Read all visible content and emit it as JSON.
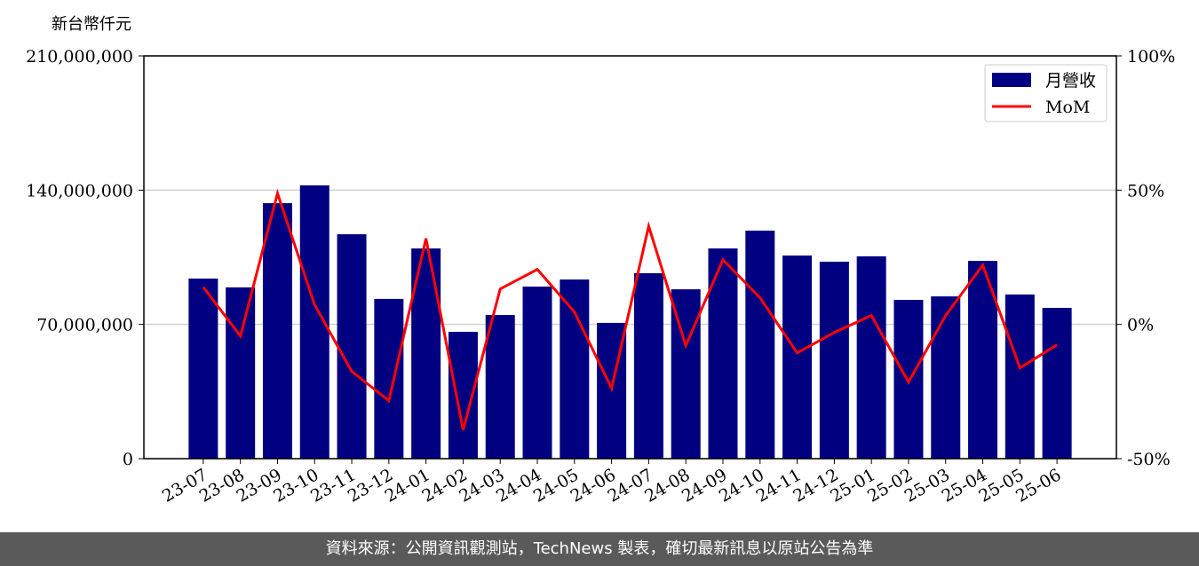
{
  "chart_data": {
    "type": "bar-line",
    "y_axis_label": "新台幣仟元",
    "categories": [
      "23-07",
      "23-08",
      "23-09",
      "23-10",
      "23-11",
      "23-12",
      "24-01",
      "24-02",
      "24-03",
      "24-04",
      "24-05",
      "24-06",
      "24-07",
      "24-08",
      "24-09",
      "24-10",
      "24-11",
      "24-12",
      "25-01",
      "25-02",
      "25-03",
      "25-04",
      "25-05",
      "25-06"
    ],
    "series": [
      {
        "name": "月營收",
        "color": "#000080",
        "type": "bar",
        "values": [
          93900000,
          89300000,
          133200000,
          142500000,
          117000000,
          83300000,
          109600000,
          66100000,
          74900000,
          89700000,
          93400000,
          70800000,
          96700000,
          88300000,
          109600000,
          118900000,
          105900000,
          102700000,
          105500000,
          82800000,
          84600000,
          103100000,
          85600000,
          78600000
        ]
      },
      {
        "name": "MoM",
        "color": "#ff0000",
        "type": "line",
        "axis": "y2",
        "values": [
          13.9,
          -4.3,
          48.8,
          7.3,
          -17.5,
          -28.4,
          32.0,
          -39.3,
          13.2,
          20.5,
          4.6,
          -23.8,
          36.6,
          -7.9,
          24.1,
          9.9,
          -10.6,
          -3.0,
          3.3,
          -21.5,
          3.3,
          22.1,
          -16.2,
          -7.6
        ]
      }
    ],
    "ylim": [
      0,
      210000000
    ],
    "yticks": [
      {
        "value": 0,
        "label": "0"
      },
      {
        "value": 70000000,
        "label": "70,000,000"
      },
      {
        "value": 140000000,
        "label": "140,000,000"
      },
      {
        "value": 210000000,
        "label": "210,000,000"
      }
    ],
    "y2lim": [
      -50,
      100
    ],
    "y2ticks": [
      {
        "value": -50,
        "label": "-50%"
      },
      {
        "value": 0,
        "label": "0%"
      },
      {
        "value": 50,
        "label": "50%"
      },
      {
        "value": 100,
        "label": "100%"
      }
    ],
    "grid": true,
    "legend": "upper right"
  },
  "footer": "資料來源：公開資訊觀測站，TechNews 製表，確切最新訊息以原站公告為準"
}
